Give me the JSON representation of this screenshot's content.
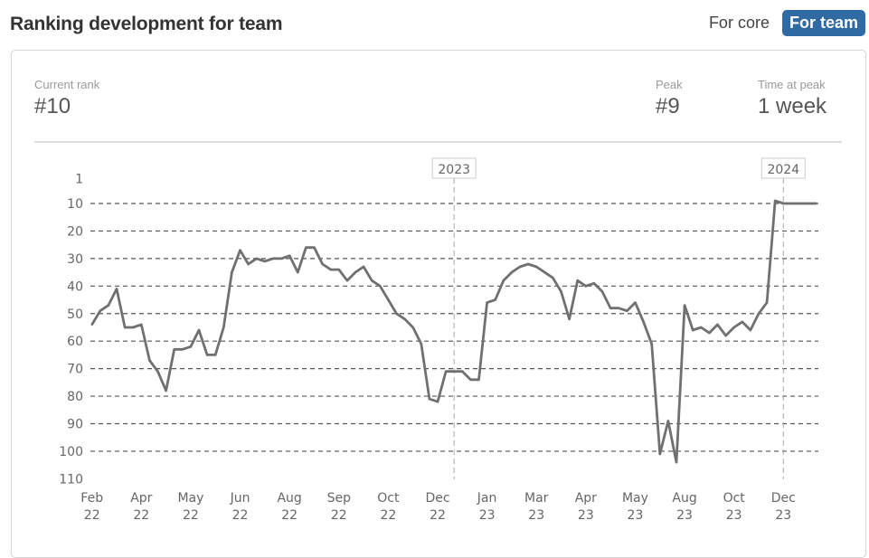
{
  "header": {
    "title": "Ranking development for team"
  },
  "toggle": {
    "options": [
      "For core",
      "For team"
    ],
    "selected": "For team",
    "accent": "#2f6aa3"
  },
  "stats": {
    "current_rank": {
      "label": "Current rank",
      "value": "#10"
    },
    "peak": {
      "label": "Peak",
      "value": "#9"
    },
    "time_at_peak": {
      "label": "Time at peak",
      "value": "1 week"
    }
  },
  "chart_data": {
    "type": "line",
    "y_axis": {
      "inverted": true,
      "ylim": [
        1,
        110
      ],
      "ticks": [
        "1",
        "10",
        "20",
        "30",
        "40",
        "50",
        "60",
        "70",
        "80",
        "90",
        "100",
        "110"
      ]
    },
    "grid": "dashed horizontal",
    "x_ticks": [
      {
        "index": 0,
        "month": "Feb",
        "year": "22"
      },
      {
        "index": 6,
        "month": "Apr",
        "year": "22"
      },
      {
        "index": 12,
        "month": "May",
        "year": "22"
      },
      {
        "index": 18,
        "month": "Jun",
        "year": "22"
      },
      {
        "index": 24,
        "month": "Aug",
        "year": "22"
      },
      {
        "index": 30,
        "month": "Sep",
        "year": "22"
      },
      {
        "index": 36,
        "month": "Oct",
        "year": "22"
      },
      {
        "index": 42,
        "month": "Dec",
        "year": "22"
      },
      {
        "index": 48,
        "month": "Jan",
        "year": "23"
      },
      {
        "index": 54,
        "month": "Mar",
        "year": "23"
      },
      {
        "index": 60,
        "month": "Apr",
        "year": "23"
      },
      {
        "index": 66,
        "month": "May",
        "year": "23"
      },
      {
        "index": 72,
        "month": "Aug",
        "year": "23"
      },
      {
        "index": 78,
        "month": "Oct",
        "year": "23"
      },
      {
        "index": 84,
        "month": "Dec",
        "year": "23"
      }
    ],
    "year_markers": [
      {
        "index": 44,
        "label": "2023"
      },
      {
        "index": 84,
        "label": "2024"
      }
    ],
    "line_color": "#707070",
    "series": [
      {
        "values": [
          54,
          49,
          47,
          41,
          55,
          55,
          54,
          67,
          71,
          78,
          63,
          63,
          62,
          56,
          65,
          65,
          55,
          35,
          27,
          32,
          30,
          31,
          30,
          30,
          29,
          35,
          26,
          26,
          32,
          34,
          34,
          38,
          35,
          33,
          38,
          40,
          45,
          50,
          52,
          55,
          61,
          81,
          82,
          71,
          71,
          71,
          74,
          74,
          46,
          45,
          38,
          35,
          33,
          32,
          33,
          35,
          37,
          42,
          52,
          38,
          40,
          39,
          42,
          48,
          48,
          49,
          46,
          53,
          61,
          101,
          89,
          104,
          47,
          56,
          55,
          57,
          54,
          58,
          55,
          53,
          56,
          50,
          46,
          9,
          10,
          10,
          10,
          10,
          10
        ]
      }
    ]
  }
}
